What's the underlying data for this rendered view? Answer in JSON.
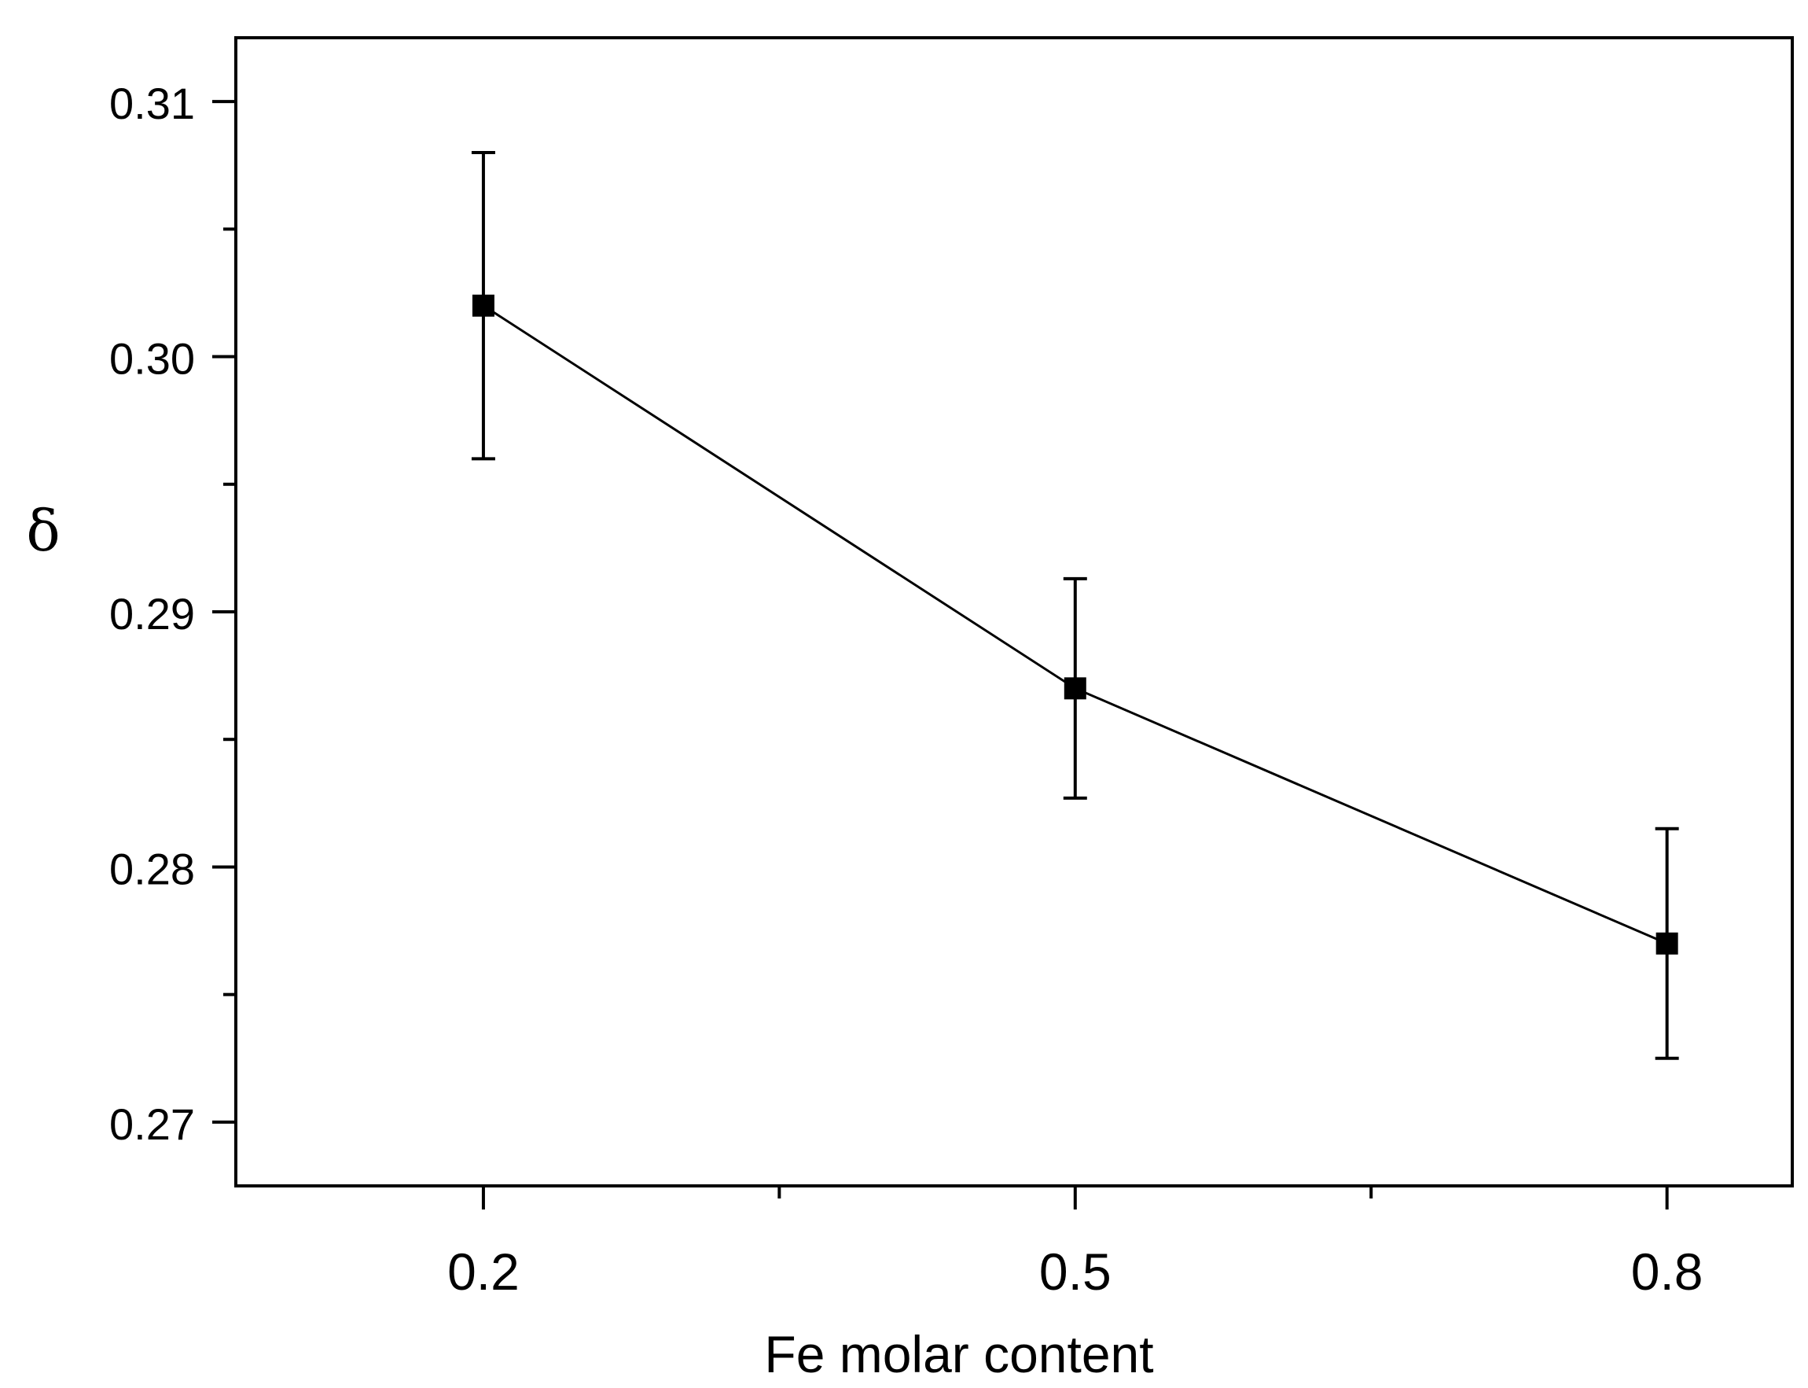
{
  "chart_data": {
    "type": "line",
    "title": "",
    "xlabel": "Fe molar content",
    "ylabel": "δ",
    "xlim": [
      0.0745,
      0.8635
    ],
    "ylim": [
      0.2675,
      0.3125
    ],
    "x_ticks": [
      0.2,
      0.5,
      0.8
    ],
    "x_tick_labels": [
      "0.2",
      "0.5",
      "0.8"
    ],
    "x_minor_ticks": [
      0.35,
      0.65
    ],
    "y_ticks": [
      0.27,
      0.28,
      0.29,
      0.3,
      0.31
    ],
    "y_tick_labels": [
      "0.27",
      "0.28",
      "0.29",
      "0.30",
      "0.31"
    ],
    "y_minor_ticks": [
      0.275,
      0.285,
      0.295,
      0.305
    ],
    "grid": false,
    "legend": "none",
    "marker": "square",
    "color": "#000000",
    "series": [
      {
        "x": [
          0.2,
          0.5,
          0.8
        ],
        "y": [
          0.302,
          0.287,
          0.277
        ],
        "y_err_upper": [
          0.308,
          0.2913,
          0.2815
        ],
        "y_err_lower": [
          0.296,
          0.2827,
          0.2725
        ]
      }
    ]
  }
}
